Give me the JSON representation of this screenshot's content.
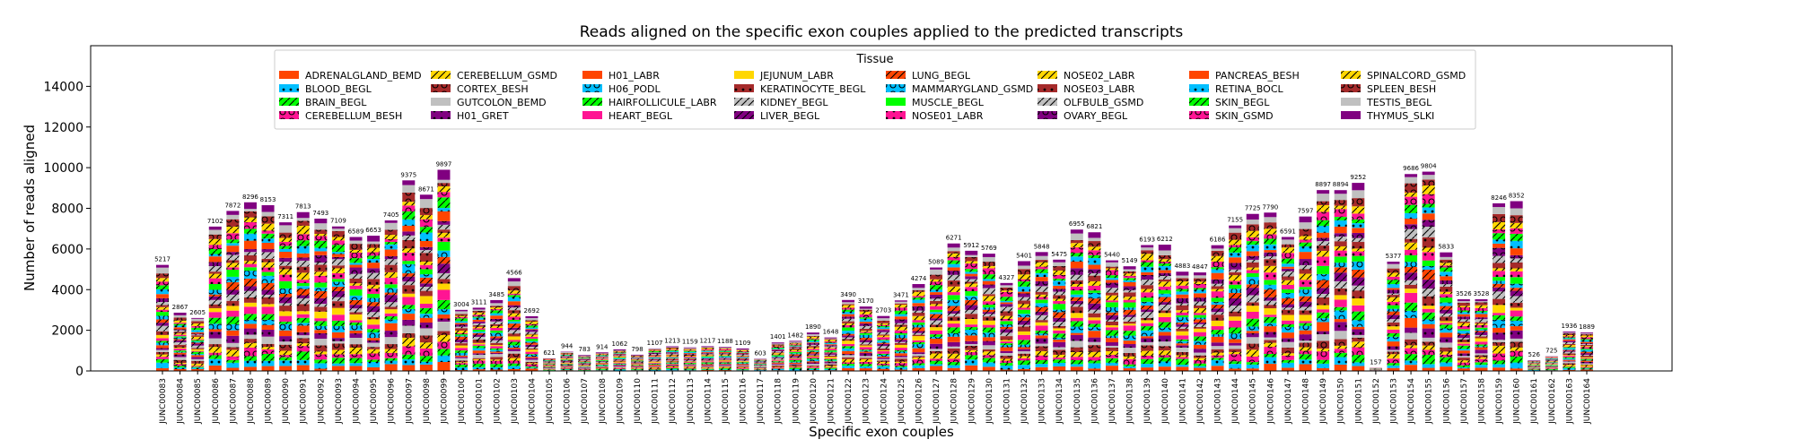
{
  "chart_data": {
    "type": "bar",
    "stacked": true,
    "title": "Reads aligned on the specific exon couples applied to the predicted transcripts",
    "xlabel": "Specific exon couples",
    "ylabel": "Number of reads aligned",
    "ylim": [
      0,
      16000
    ],
    "yticks": [
      0,
      2000,
      4000,
      6000,
      8000,
      10000,
      12000,
      14000
    ],
    "grid": false,
    "legend": {
      "title": "Tissue",
      "placement": "top-center",
      "columns": 8
    },
    "categories": [
      "JUNC00083",
      "JUNC00084",
      "JUNC00085",
      "JUNC00086",
      "JUNC00087",
      "JUNC00088",
      "JUNC00089",
      "JUNC00090",
      "JUNC00091",
      "JUNC00092",
      "JUNC00093",
      "JUNC00094",
      "JUNC00095",
      "JUNC00096",
      "JUNC00097",
      "JUNC00098",
      "JUNC00099",
      "JUNC00100",
      "JUNC00101",
      "JUNC00102",
      "JUNC00103",
      "JUNC00104",
      "JUNC00105",
      "JUNC00106",
      "JUNC00107",
      "JUNC00108",
      "JUNC00109",
      "JUNC00110",
      "JUNC00111",
      "JUNC00112",
      "JUNC00113",
      "JUNC00114",
      "JUNC00115",
      "JUNC00116",
      "JUNC00117",
      "JUNC00118",
      "JUNC00119",
      "JUNC00120",
      "JUNC00121",
      "JUNC00122",
      "JUNC00123",
      "JUNC00124",
      "JUNC00125",
      "JUNC00126",
      "JUNC00127",
      "JUNC00128",
      "JUNC00129",
      "JUNC00130",
      "JUNC00131",
      "JUNC00132",
      "JUNC00133",
      "JUNC00134",
      "JUNC00135",
      "JUNC00136",
      "JUNC00137",
      "JUNC00138",
      "JUNC00139",
      "JUNC00140",
      "JUNC00141",
      "JUNC00142",
      "JUNC00143",
      "JUNC00144",
      "JUNC00145",
      "JUNC00146",
      "JUNC00147",
      "JUNC00148",
      "JUNC00149",
      "JUNC00150",
      "JUNC00151",
      "JUNC00152",
      "JUNC00153",
      "JUNC00154",
      "JUNC00155",
      "JUNC00156",
      "JUNC00157",
      "JUNC00158",
      "JUNC00159",
      "JUNC00160",
      "JUNC00161",
      "JUNC00162",
      "JUNC00163",
      "JUNC00164"
    ],
    "totals": [
      5217,
      2867,
      2605,
      7102,
      7872,
      8296,
      8153,
      7311,
      7813,
      7493,
      7109,
      6589,
      6653,
      7405,
      9375,
      8671,
      9897,
      3004,
      3111,
      3485,
      4566,
      2692,
      621,
      944,
      783,
      914,
      1062,
      798,
      1107,
      1213,
      1159,
      1217,
      1188,
      1109,
      603,
      1401,
      1482,
      1890,
      1648,
      3490,
      3170,
      2703,
      3471,
      4274,
      5089,
      6271,
      5912,
      5769,
      4327,
      5401,
      5848,
      5475,
      6955,
      6821,
      5440,
      5149,
      6193,
      6212,
      4883,
      4847,
      6186,
      7155,
      7725,
      7790,
      6591,
      7597,
      8897,
      8894,
      9252,
      157,
      5377,
      9686,
      9804,
      5833,
      3526,
      3528,
      8246,
      8352,
      526,
      725,
      1936,
      1889
    ],
    "series": [
      {
        "name": "ADRENALGLAND_BEMD",
        "color": "#ff4500",
        "hatch": ""
      },
      {
        "name": "BLOOD_BEGL",
        "color": "#00bfff",
        "hatch": "dot"
      },
      {
        "name": "BRAIN_BEGL",
        "color": "#00ff00",
        "hatch": "slash"
      },
      {
        "name": "CEREBELLUM_BESH",
        "color": "#ff1493",
        "hatch": "ring"
      },
      {
        "name": "CEREBELLUM_GSMD",
        "color": "#ffd700",
        "hatch": "slash"
      },
      {
        "name": "CORTEX_BESH",
        "color": "#a52a2a",
        "hatch": "ring"
      },
      {
        "name": "GUTCOLON_BEMD",
        "color": "#c0c0c0",
        "hatch": ""
      },
      {
        "name": "H01_GRET",
        "color": "#800080",
        "hatch": "dot"
      },
      {
        "name": "H01_LABR",
        "color": "#ff4500",
        "hatch": ""
      },
      {
        "name": "H06_PODL",
        "color": "#00bfff",
        "hatch": "ring"
      },
      {
        "name": "HAIRFOLLICULE_LABR",
        "color": "#00ff00",
        "hatch": "slash"
      },
      {
        "name": "HEART_BEGL",
        "color": "#ff1493",
        "hatch": ""
      },
      {
        "name": "JEJUNUM_LABR",
        "color": "#ffd700",
        "hatch": ""
      },
      {
        "name": "KERATINOCYTE_BEGL",
        "color": "#a52a2a",
        "hatch": "dot"
      },
      {
        "name": "KIDNEY_BEGL",
        "color": "#c0c0c0",
        "hatch": "slash"
      },
      {
        "name": "LIVER_BEGL",
        "color": "#800080",
        "hatch": "slash"
      },
      {
        "name": "LUNG_BEGL",
        "color": "#ff4500",
        "hatch": "slash"
      },
      {
        "name": "MAMMARYGLAND_GSMD",
        "color": "#00bfff",
        "hatch": "ring"
      },
      {
        "name": "MUSCLE_BEGL",
        "color": "#00ff00",
        "hatch": ""
      },
      {
        "name": "NOSE01_LABR",
        "color": "#ff1493",
        "hatch": "dot"
      },
      {
        "name": "NOSE02_LABR",
        "color": "#ffd700",
        "hatch": "slash"
      },
      {
        "name": "NOSE03_LABR",
        "color": "#a52a2a",
        "hatch": "dot"
      },
      {
        "name": "OLFBULB_GSMD",
        "color": "#c0c0c0",
        "hatch": "slash"
      },
      {
        "name": "OVARY_BEGL",
        "color": "#800080",
        "hatch": "ring"
      },
      {
        "name": "PANCREAS_BESH",
        "color": "#ff4500",
        "hatch": ""
      },
      {
        "name": "RETINA_BOCL",
        "color": "#00bfff",
        "hatch": "dot"
      },
      {
        "name": "SKIN_BEGL",
        "color": "#00ff00",
        "hatch": "slash"
      },
      {
        "name": "SKIN_GSMD",
        "color": "#ff1493",
        "hatch": "ring"
      },
      {
        "name": "SPINALCORD_GSMD",
        "color": "#ffd700",
        "hatch": "slash"
      },
      {
        "name": "SPLEEN_BESH",
        "color": "#a52a2a",
        "hatch": "ring"
      },
      {
        "name": "TESTIS_BEGL",
        "color": "#c0c0c0",
        "hatch": ""
      },
      {
        "name": "THYMUS_SLKI",
        "color": "#800080",
        "hatch": ""
      }
    ]
  }
}
